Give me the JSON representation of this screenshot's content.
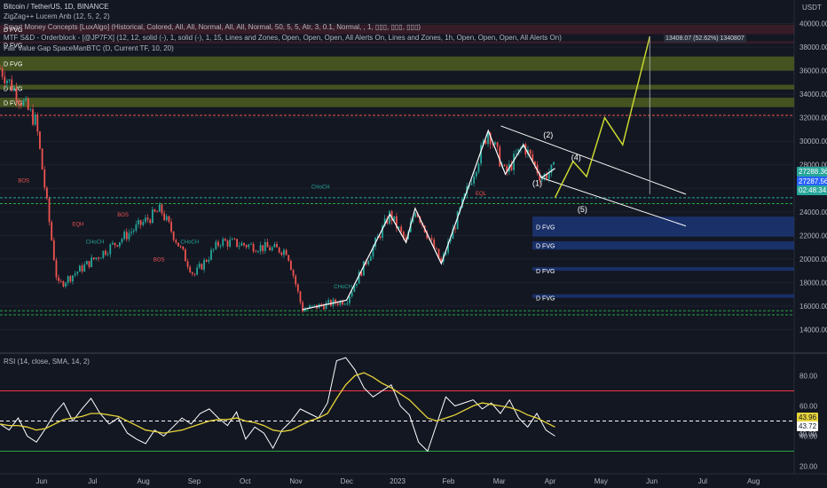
{
  "header": {
    "symbol": "Bitcoin / TetherUS, 1D, BINANCE",
    "indicators": [
      "ZigZag++ Lucem Anb (12, 5, 2, 2)",
      "Smart Money Concepts [LuxAlgo] (Historical, Colored, All, All, Normal, All, All, Normal, 50, 5, 5, Atr, 3, 0.1, Normal, , 1, ▯▯▯, ▯▯▯, ▯▯▯)",
      "MTF S&D - Orderblock - [@JP7FX] (12, 12, solid (-), 1, solid (-), 1, 15, Lines and Zones, Open, Open, Open, All Alerts On, Lines and Zones, 1h, Open, Open, Open, All Alerts On)",
      "Fair Value Gap SpaceManBTC (D, Current TF, 10, 20)"
    ],
    "currency": "USDT"
  },
  "rsi_label": "RSI (14, close, SMA, 14, 2)",
  "measure_label": "13408.07 (52.62%) 1340807",
  "price_tags": {
    "current": "27288.36",
    "second": "27287.56",
    "countdown": "02:48:34"
  },
  "rsi_tags": {
    "ma": "43.96",
    "rsi": "43.72",
    "partial": "40.00"
  },
  "colors": {
    "background": "#131722",
    "up": "#26a69a",
    "down": "#ef5350",
    "zigzag": "#ffffff",
    "rsi_ma": "#e6d33a",
    "projection": "#c8d630",
    "fvg_green": "#4a5a20",
    "fvg_blue": "#1c3a80",
    "rsi_band": "#f23645",
    "rsi_lower": "#26a641"
  },
  "chart_data": [
    {
      "type": "candlestick",
      "title": "Bitcoin / TetherUS, 1D, BINANCE",
      "ylim": [
        12000,
        42000
      ],
      "y_ticks": [
        14000,
        16000,
        18000,
        20000,
        22000,
        24000,
        26000,
        28000,
        30000,
        32000,
        34000,
        36000,
        38000,
        40000
      ],
      "x_ticks": [
        "Jun",
        "Jul",
        "Aug",
        "Sep",
        "Oct",
        "Nov",
        "Dec",
        "2023",
        "Feb",
        "Mar",
        "Apr",
        "May",
        "Jun",
        "Jul",
        "Aug"
      ],
      "zigzag_path": [
        {
          "t": 0,
          "p": 36200
        },
        {
          "t": 40,
          "p": 31600
        },
        {
          "t": 64,
          "p": 17700
        },
        {
          "t": 178,
          "p": 24200
        },
        {
          "t": 215,
          "p": 18600
        },
        {
          "t": 244,
          "p": 21500
        },
        {
          "t": 318,
          "p": 20700
        },
        {
          "t": 335,
          "p": 15700
        },
        {
          "t": 384,
          "p": 16500
        },
        {
          "t": 432,
          "p": 23800
        },
        {
          "t": 450,
          "p": 21400
        },
        {
          "t": 460,
          "p": 24300
        },
        {
          "t": 489,
          "p": 19600
        },
        {
          "t": 541,
          "p": 30900
        },
        {
          "t": 560,
          "p": 27200
        },
        {
          "t": 580,
          "p": 29700
        },
        {
          "t": 600,
          "p": 26900
        },
        {
          "t": 615,
          "p": 27700
        }
      ],
      "projection_path": [
        {
          "t": 615,
          "p": 25200
        },
        {
          "t": 635,
          "p": 28300
        },
        {
          "t": 650,
          "p": 27000
        },
        {
          "t": 670,
          "p": 32000
        },
        {
          "t": 690,
          "p": 29700
        },
        {
          "t": 720,
          "p": 38900
        }
      ],
      "fvg_zones": [
        {
          "label": "D FVG",
          "top": 39900,
          "bottom": 39100,
          "color": "red"
        },
        {
          "label": "D FVG",
          "top": 38500,
          "bottom": 38300,
          "color": "red"
        },
        {
          "label": "D FVG",
          "top": 37200,
          "bottom": 36000,
          "color": "green"
        },
        {
          "label": "D FVG",
          "top": 34800,
          "bottom": 34400,
          "color": "green"
        },
        {
          "label": "D FVG",
          "top": 33700,
          "bottom": 32900,
          "color": "green"
        },
        {
          "label": "D FVG",
          "top": 23600,
          "bottom": 21900,
          "color": "blue"
        },
        {
          "label": "D FVG",
          "top": 21500,
          "bottom": 20800,
          "color": "blue"
        },
        {
          "label": "D FVG",
          "top": 19300,
          "bottom": 19000,
          "color": "blue"
        },
        {
          "label": "D FVG",
          "top": 17000,
          "bottom": 16700,
          "color": "blue"
        }
      ],
      "wave_labels": [
        "(1)",
        "(2)",
        "(4)",
        "(5)"
      ],
      "structure_labels": [
        "BOS",
        "CHoCH",
        "EQH",
        "EQL"
      ]
    },
    {
      "type": "line",
      "title": "RSI (14, close, SMA, 14, 2)",
      "ylim": [
        15,
        95
      ],
      "y_ticks": [
        20,
        40,
        60,
        80
      ],
      "bands": [
        70,
        30
      ],
      "midline": 50,
      "series": [
        {
          "name": "",
          "color": "#ffffff",
          "values": [
            48,
            44,
            52,
            40,
            36,
            45,
            55,
            62,
            50,
            58,
            65,
            55,
            48,
            52,
            42,
            38,
            35,
            44,
            40,
            46,
            52,
            48,
            55,
            58,
            52,
            47,
            56,
            38,
            46,
            42,
            32,
            44,
            50,
            58,
            55,
            52,
            62,
            90,
            92,
            84,
            72,
            66,
            70,
            74,
            60,
            54,
            36,
            30,
            48,
            66,
            60,
            62,
            64,
            58,
            62,
            55,
            64,
            52,
            46,
            55,
            44,
            40
          ]
        },
        {
          "name": "",
          "color": "#e6d33a",
          "values": [
            48,
            47,
            47,
            46,
            44,
            45,
            48,
            51,
            52,
            53,
            55,
            55,
            54,
            53,
            50,
            47,
            44,
            43,
            42,
            43,
            44,
            46,
            48,
            50,
            51,
            51,
            52,
            50,
            49,
            47,
            44,
            43,
            44,
            47,
            50,
            52,
            55,
            65,
            74,
            80,
            82,
            79,
            75,
            72,
            68,
            64,
            58,
            52,
            50,
            52,
            54,
            57,
            60,
            62,
            61,
            60,
            59,
            57,
            54,
            52,
            49,
            46
          ]
        }
      ]
    }
  ]
}
